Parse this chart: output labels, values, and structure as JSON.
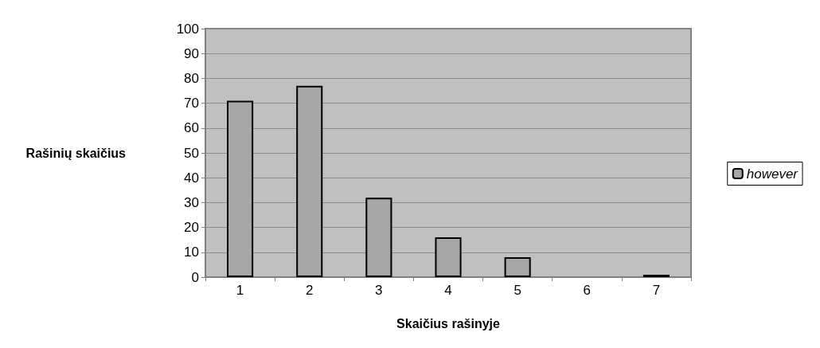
{
  "chart_data": {
    "type": "bar",
    "xlabel": "Skaičius rašinyje",
    "ylabel": "Rašinių skaičius",
    "categories": [
      "1",
      "2",
      "3",
      "4",
      "5",
      "6",
      "7"
    ],
    "series": [
      {
        "name": "however",
        "color": "#a6a6a6",
        "values": [
          71,
          77,
          32,
          16,
          8,
          0,
          1
        ]
      }
    ],
    "ylim": [
      0,
      100
    ],
    "yticks": [
      0,
      10,
      20,
      30,
      40,
      50,
      60,
      70,
      80,
      90,
      100
    ],
    "grid": "y",
    "legend": "right"
  }
}
